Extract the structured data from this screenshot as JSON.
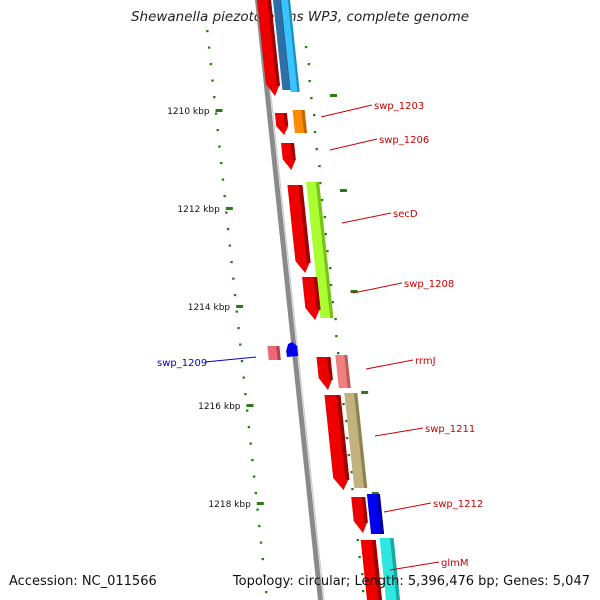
{
  "title": "Shewanella piezotolerans WP3, complete genome",
  "accession": "Accession: NC_011566",
  "summary": "Topology: circular; Length: 5,396,476 bp; Genes: 5,047",
  "kbp_labels": [
    "1210 kbp",
    "1212 kbp",
    "1214 kbp",
    "1216 kbp",
    "1218 kbp"
  ],
  "gene_labels": [
    {
      "text": "swp_1203",
      "color": "#cc0000"
    },
    {
      "text": "swp_1206",
      "color": "#cc0000"
    },
    {
      "text": "secD",
      "color": "#cc0000"
    },
    {
      "text": "swp_1208",
      "color": "#cc0000"
    },
    {
      "text": "swp_1209",
      "color": "#0000cc"
    },
    {
      "text": "rrmJ",
      "color": "#cc0000"
    },
    {
      "text": "swp_1211",
      "color": "#cc0000"
    },
    {
      "text": "swp_1212",
      "color": "#cc0000"
    },
    {
      "text": "glmM",
      "color": "#cc0000"
    }
  ],
  "colors": {
    "backbone": "#8a8a8a",
    "orf": "#ee0000",
    "tick": "#2a7a1a"
  }
}
